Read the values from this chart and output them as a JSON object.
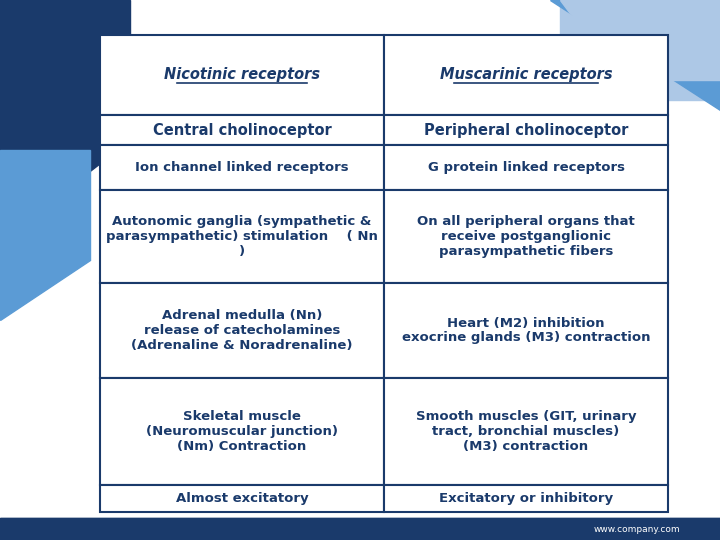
{
  "background_color": "#ffffff",
  "slide_bg_top": "#1a3a6b",
  "slide_bg_accent": "#5b9bd5",
  "table_border_color": "#1a3a6b",
  "text_color": "#1a3a6b",
  "footer_bg": "#1a3a6b",
  "footer_text": "www.company.com",
  "col1_header": "Nicotinic receptors",
  "col2_header": "Muscarinic receptors",
  "col1_sub": "Central cholinoceptor",
  "col2_sub": "Peripheral cholinoceptor",
  "rows": [
    [
      "Ion channel linked receptors",
      "G protein linked receptors"
    ],
    [
      "Autonomic ganglia (sympathetic &\nparasympathetic) stimulation    ( Nn\n)",
      "On all peripheral organs that\nreceive postganglionic\nparasympathetic fibers"
    ],
    [
      "Adrenal medulla (Nn)\nrelease of catecholamines\n(Adrenaline & Noradrenaline)",
      "Heart (M2) inhibition\nexocrine glands (M3) contraction"
    ],
    [
      "Skeletal muscle\n(Neuromuscular junction)\n(Nm) Contraction",
      "Smooth muscles (GIT, urinary\ntract, bronchial muscles)\n(M3) contraction"
    ],
    [
      "Almost excitatory",
      "Excitatory or inhibitory"
    ]
  ]
}
